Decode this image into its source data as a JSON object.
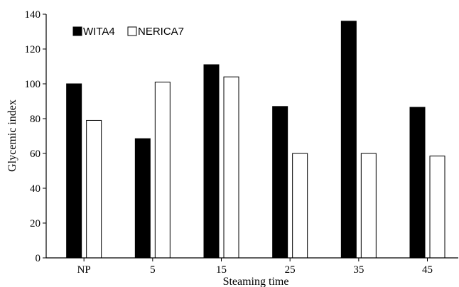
{
  "chart_data": {
    "type": "bar",
    "title": "",
    "xlabel": "Steaming time",
    "ylabel": "Glycemic index",
    "categories": [
      "NP",
      "5",
      "15",
      "25",
      "35",
      "45"
    ],
    "series": [
      {
        "name": "WITA4",
        "values": [
          100,
          68.5,
          111,
          87,
          136,
          86.5
        ],
        "color": "#000000"
      },
      {
        "name": "NERICA7",
        "values": [
          79,
          101,
          104,
          60,
          60,
          58.5
        ],
        "color": "#ffffff"
      }
    ],
    "ylim": [
      0,
      140
    ],
    "yticks": [
      "0",
      "20",
      "40",
      "60",
      "80",
      "100",
      "120",
      "140"
    ],
    "grid": false,
    "legend_position": "top-left"
  }
}
